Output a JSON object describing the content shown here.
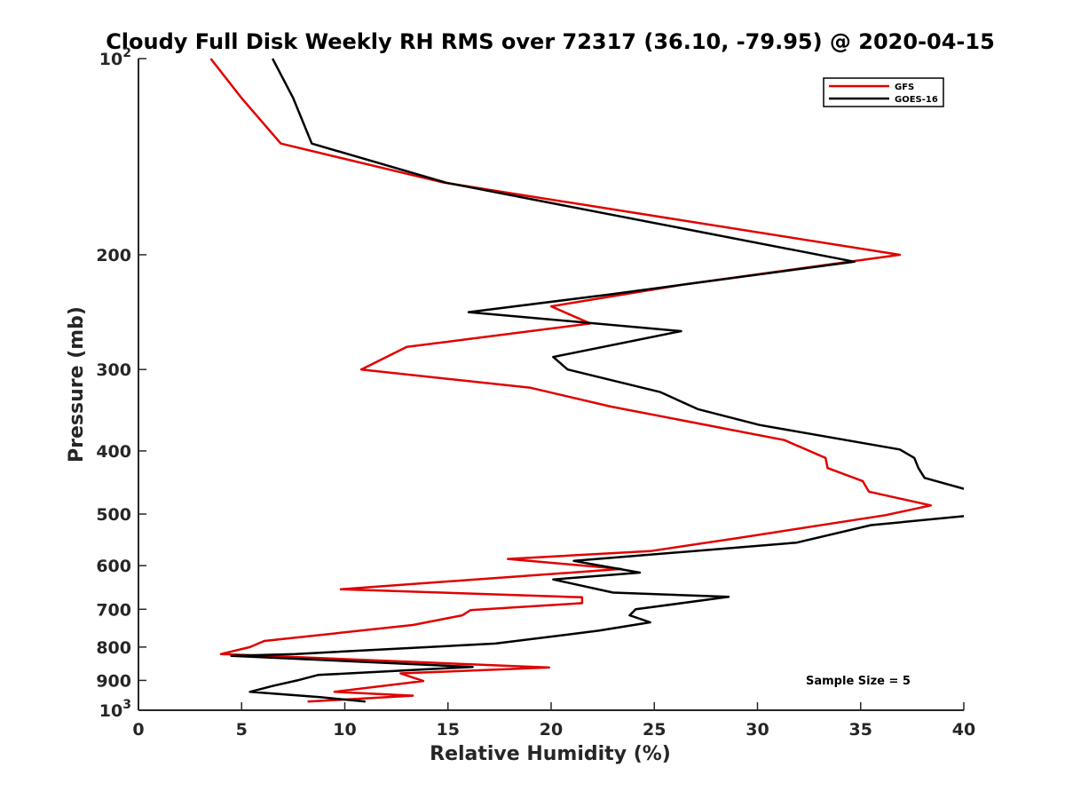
{
  "chart_data": {
    "type": "line",
    "title": "Cloudy Full Disk Weekly RH RMS over 72317 (36.10, -79.95) @ 2020-04-15",
    "xlabel": "Relative Humidity (%)",
    "ylabel": "Pressure (mb)",
    "xlim": [
      0,
      40
    ],
    "ylim": [
      100,
      1000
    ],
    "y_scale": "log",
    "y_reversed": true,
    "xticks": [
      0,
      5,
      10,
      15,
      20,
      25,
      30,
      35,
      40
    ],
    "yticks": [
      {
        "value": 100,
        "base": "10",
        "exp": "2"
      },
      {
        "value": 200,
        "label": "200"
      },
      {
        "value": 300,
        "label": "300"
      },
      {
        "value": 400,
        "label": "400"
      },
      {
        "value": 500,
        "label": "500"
      },
      {
        "value": 600,
        "label": "600"
      },
      {
        "value": 700,
        "label": "700"
      },
      {
        "value": 800,
        "label": "800"
      },
      {
        "value": 900,
        "label": "900"
      },
      {
        "value": 1000,
        "base": "10",
        "exp": "3"
      }
    ],
    "grid": false,
    "legend_position": "top-right",
    "series": [
      {
        "name": "GFS",
        "color": "#e00000",
        "points": [
          [
            3.5,
            100
          ],
          [
            5.0,
            115
          ],
          [
            6.9,
            135
          ],
          [
            14.8,
            155
          ],
          [
            36.9,
            200
          ],
          [
            26.5,
            222
          ],
          [
            20.0,
            240
          ],
          [
            21.9,
            255
          ],
          [
            13.0,
            277
          ],
          [
            10.8,
            300
          ],
          [
            19.0,
            320
          ],
          [
            22.9,
            342
          ],
          [
            28.5,
            370
          ],
          [
            31.3,
            385
          ],
          [
            33.3,
            410
          ],
          [
            33.4,
            425
          ],
          [
            35.1,
            445
          ],
          [
            35.4,
            462
          ],
          [
            38.4,
            485
          ],
          [
            36.2,
            502
          ],
          [
            29.1,
            544
          ],
          [
            24.8,
            570
          ],
          [
            17.9,
            586
          ],
          [
            23.4,
            607
          ],
          [
            9.8,
            652
          ],
          [
            21.5,
            671
          ],
          [
            21.5,
            685
          ],
          [
            16.1,
            702
          ],
          [
            15.7,
            715
          ],
          [
            13.3,
            740
          ],
          [
            6.1,
            783
          ],
          [
            5.4,
            800
          ],
          [
            4.0,
            820
          ],
          [
            19.9,
            860
          ],
          [
            12.7,
            878
          ],
          [
            13.8,
            902
          ],
          [
            9.5,
            937
          ],
          [
            13.3,
            950
          ],
          [
            8.2,
            970
          ]
        ]
      },
      {
        "name": "GOES-16",
        "color": "#000000",
        "points": [
          [
            6.5,
            100
          ],
          [
            7.5,
            115
          ],
          [
            8.4,
            135
          ],
          [
            14.9,
            155
          ],
          [
            34.7,
            205
          ],
          [
            22.9,
            230
          ],
          [
            16.0,
            245
          ],
          [
            26.3,
            262
          ],
          [
            20.1,
            287
          ],
          [
            20.8,
            300
          ],
          [
            25.3,
            325
          ],
          [
            27.1,
            345
          ],
          [
            30.1,
            365
          ],
          [
            36.9,
            398
          ],
          [
            37.6,
            410
          ],
          [
            37.8,
            425
          ],
          [
            38.1,
            440
          ],
          [
            40.5,
            462
          ],
          [
            40.5,
            502
          ],
          [
            35.5,
            520
          ],
          [
            31.9,
            553
          ],
          [
            21.1,
            590
          ],
          [
            24.3,
            615
          ],
          [
            20.1,
            630
          ],
          [
            23.0,
            660
          ],
          [
            28.6,
            670
          ],
          [
            24.1,
            700
          ],
          [
            23.8,
            715
          ],
          [
            24.8,
            733
          ],
          [
            22.3,
            755
          ],
          [
            17.3,
            790
          ],
          [
            7.6,
            820
          ],
          [
            4.5,
            825
          ],
          [
            16.2,
            858
          ],
          [
            8.7,
            883
          ],
          [
            7.7,
            900
          ],
          [
            6.5,
            918
          ],
          [
            5.4,
            937
          ],
          [
            8.8,
            955
          ],
          [
            11.0,
            970
          ]
        ]
      }
    ],
    "annotation": "Sample Size = 5"
  }
}
